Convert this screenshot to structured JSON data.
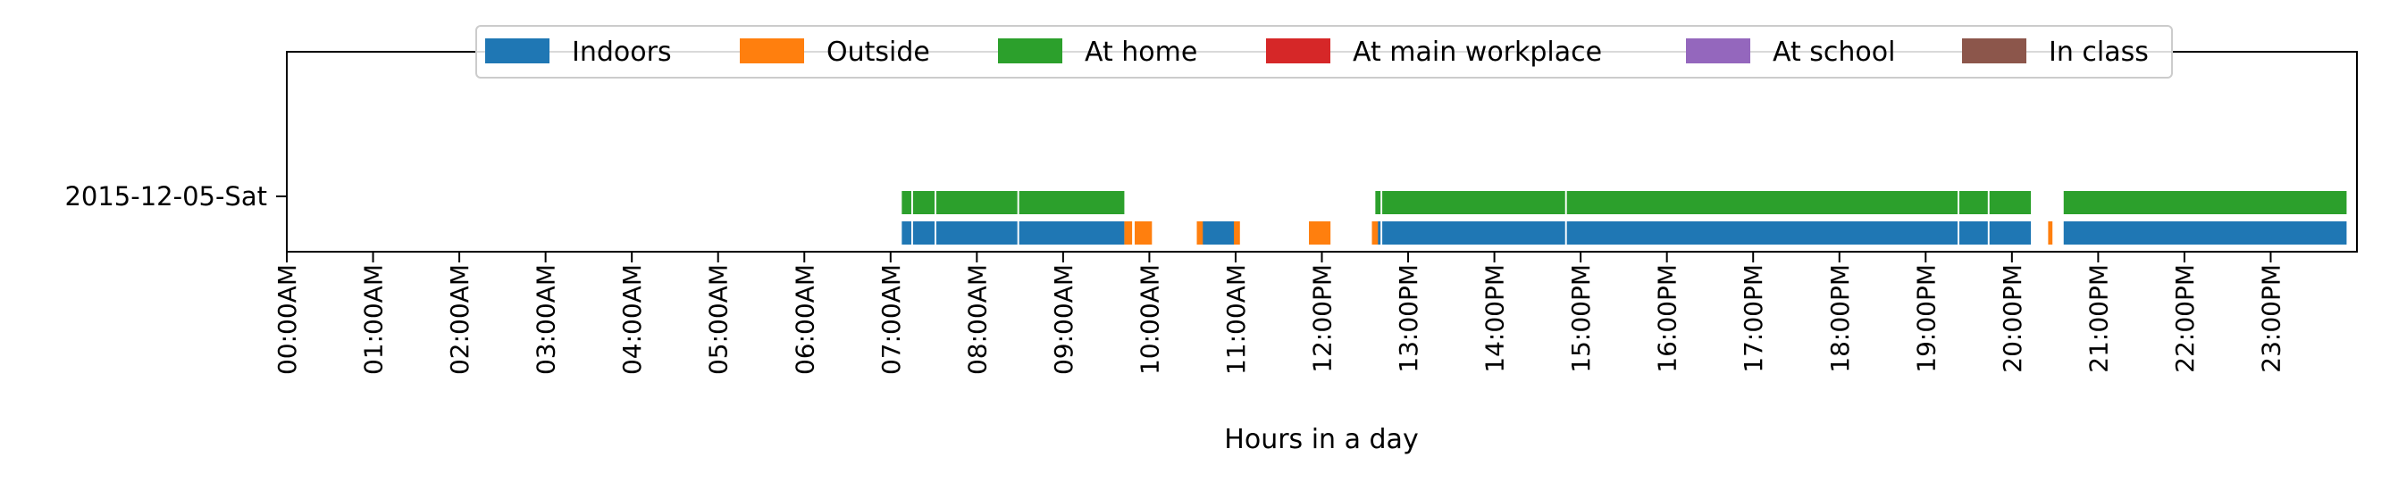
{
  "chart_data": {
    "type": "timeline",
    "xlabel": "Hours in a day",
    "ylabel": "",
    "xlim": [
      0,
      24
    ],
    "grid": false,
    "legend_position": "top-center",
    "x_ticks": [
      "00:00AM",
      "01:00AM",
      "02:00AM",
      "03:00AM",
      "04:00AM",
      "05:00AM",
      "06:00AM",
      "07:00AM",
      "08:00AM",
      "09:00AM",
      "10:00AM",
      "11:00AM",
      "12:00PM",
      "13:00PM",
      "14:00PM",
      "15:00PM",
      "16:00PM",
      "17:00PM",
      "18:00PM",
      "19:00PM",
      "20:00PM",
      "21:00PM",
      "22:00PM",
      "23:00PM"
    ],
    "categories": [
      "2015-12-05-Sat"
    ],
    "series": [
      {
        "name": "Indoors",
        "color": "#1f77b4",
        "intervals": [
          [
            7.13,
            7.24
          ],
          [
            7.26,
            7.51
          ],
          [
            7.53,
            8.47
          ],
          [
            8.49,
            9.71
          ],
          [
            10.57,
            11.0
          ],
          [
            12.62,
            12.68
          ],
          [
            12.7,
            14.82
          ],
          [
            14.84,
            19.37
          ],
          [
            19.39,
            19.72
          ],
          [
            19.74,
            20.22
          ],
          [
            20.6,
            23.88
          ]
        ]
      },
      {
        "name": "Outside",
        "color": "#ff7f0e",
        "intervals": [
          [
            9.71,
            9.8
          ],
          [
            9.83,
            10.03
          ],
          [
            10.55,
            10.62
          ],
          [
            10.98,
            11.05
          ],
          [
            11.85,
            12.1
          ],
          [
            12.58,
            12.65
          ],
          [
            20.42,
            20.47
          ]
        ]
      },
      {
        "name": "At home",
        "color": "#2ca02c",
        "intervals": [
          [
            7.13,
            7.24
          ],
          [
            7.26,
            7.51
          ],
          [
            7.53,
            8.47
          ],
          [
            8.49,
            9.71
          ],
          [
            12.62,
            12.68
          ],
          [
            12.7,
            14.82
          ],
          [
            14.84,
            19.37
          ],
          [
            19.39,
            19.72
          ],
          [
            19.74,
            20.22
          ],
          [
            20.6,
            23.88
          ]
        ]
      },
      {
        "name": "At main workplace",
        "color": "#d62728",
        "intervals": []
      },
      {
        "name": "At school",
        "color": "#9467bd",
        "intervals": []
      },
      {
        "name": "In class",
        "color": "#8c564b",
        "intervals": []
      }
    ]
  }
}
